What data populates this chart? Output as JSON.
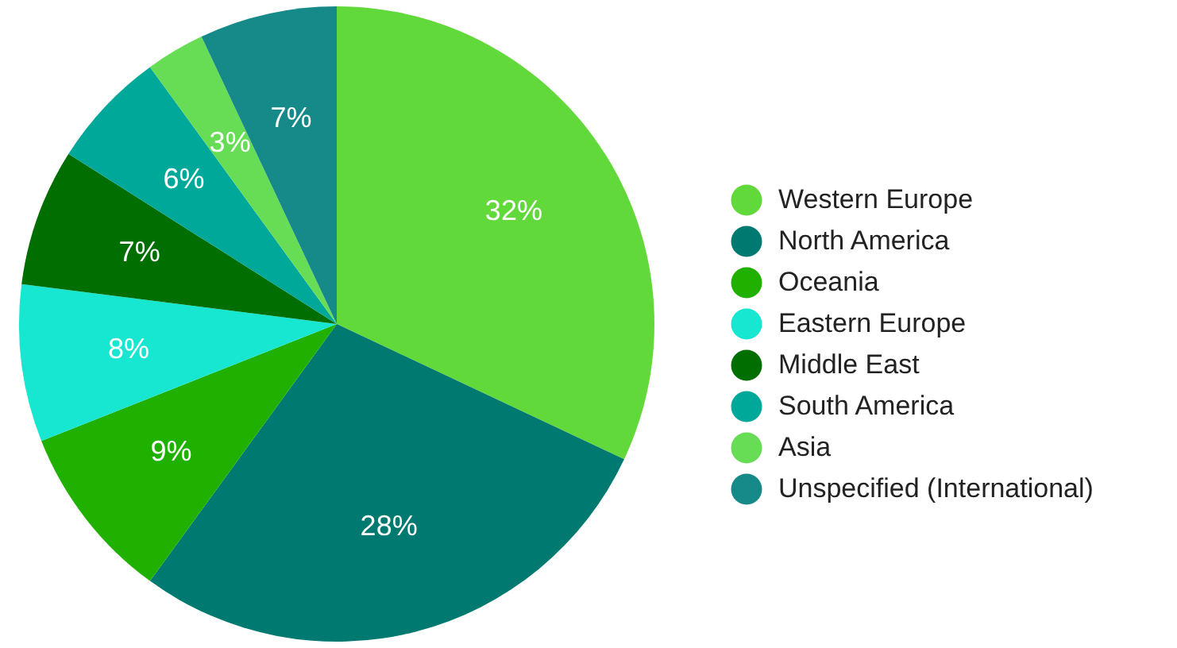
{
  "chart_data": {
    "type": "pie",
    "categories": [
      "Western Europe",
      "North America",
      "Oceania",
      "Eastern Europe",
      "Middle East",
      "South America",
      "Asia",
      "Unspecified (International)"
    ],
    "values": [
      32,
      28,
      9,
      8,
      7,
      6,
      3,
      7
    ],
    "colors": [
      "#62d93a",
      "#007a70",
      "#1fb000",
      "#17e6d0",
      "#006e00",
      "#00a89a",
      "#66dd55",
      "#168a88"
    ],
    "value_labels": [
      "32%",
      "28%",
      "9%",
      "8%",
      "7%",
      "6%",
      "3%",
      "7%"
    ],
    "legend": "right"
  }
}
